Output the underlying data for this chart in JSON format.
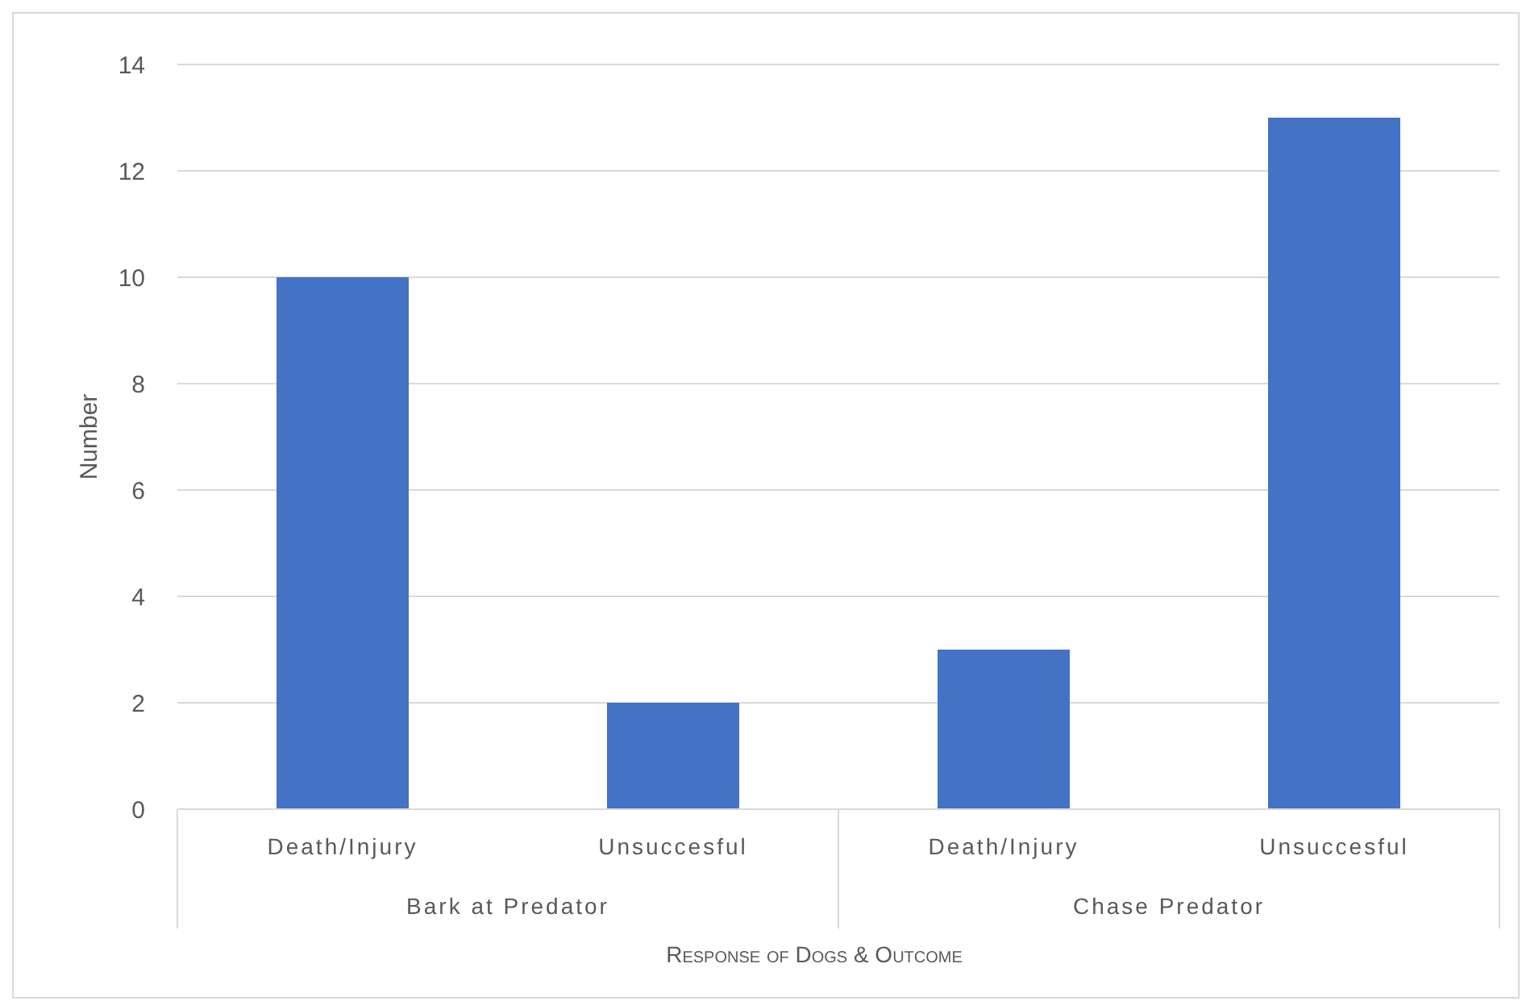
{
  "chart_data": {
    "type": "bar",
    "xlabel": "Response of Dogs & Outcome",
    "ylabel": "Number",
    "categories": [
      "Death/Injury",
      "Unsuccesful",
      "Death/Injury",
      "Unsuccesful"
    ],
    "values": [
      10,
      2,
      3,
      13
    ],
    "color": "#4472c4",
    "ylim": [
      0,
      14
    ],
    "yticks": [
      0,
      2,
      4,
      6,
      8,
      10,
      12,
      14
    ],
    "grid": "y",
    "annotations": [
      "Bark at Predator",
      "Chase Predator"
    ]
  }
}
